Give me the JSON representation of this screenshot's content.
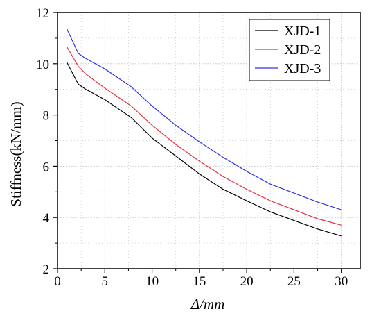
{
  "chart_data": {
    "type": "line",
    "title": "",
    "xlabel": "Δ/mm",
    "ylabel": "Stiffness(kN/mm)",
    "xlim": [
      0,
      32
    ],
    "ylim": [
      2,
      12
    ],
    "xticks": [
      0,
      5,
      10,
      15,
      20,
      25,
      30
    ],
    "yticks": [
      2,
      4,
      6,
      8,
      10,
      12
    ],
    "xtick_labels": [
      "0",
      "5",
      "10",
      "15",
      "20",
      "25",
      "30"
    ],
    "ytick_labels": [
      "2",
      "4",
      "6",
      "8",
      "10",
      "12"
    ],
    "grid": true,
    "legend": "top-right",
    "series": [
      {
        "name": "XJD-1",
        "color": "#000000",
        "x": [
          1,
          2.2,
          3,
          5,
          7.8,
          10,
          12.5,
          15,
          17.5,
          20,
          22.5,
          25,
          27.5,
          30
        ],
        "y": [
          10.05,
          9.2,
          9.0,
          8.6,
          7.9,
          7.1,
          6.4,
          5.7,
          5.1,
          4.65,
          4.22,
          3.88,
          3.55,
          3.28
        ]
      },
      {
        "name": "XJD-2",
        "color": "#e8323c",
        "x": [
          1,
          2.2,
          3,
          5,
          7.8,
          10,
          12.5,
          15,
          17.5,
          20,
          22.5,
          25,
          27.5,
          30
        ],
        "y": [
          10.65,
          9.9,
          9.6,
          9.05,
          8.35,
          7.6,
          6.85,
          6.2,
          5.6,
          5.1,
          4.65,
          4.3,
          3.95,
          3.7
        ]
      },
      {
        "name": "XJD-3",
        "color": "#3232e6",
        "x": [
          1,
          2.2,
          3,
          5,
          7.8,
          10,
          12.5,
          15,
          17.5,
          20,
          22.5,
          25,
          27.5,
          30
        ],
        "y": [
          11.35,
          10.4,
          10.2,
          9.8,
          9.1,
          8.35,
          7.6,
          6.95,
          6.35,
          5.8,
          5.3,
          4.95,
          4.6,
          4.3
        ]
      }
    ]
  }
}
